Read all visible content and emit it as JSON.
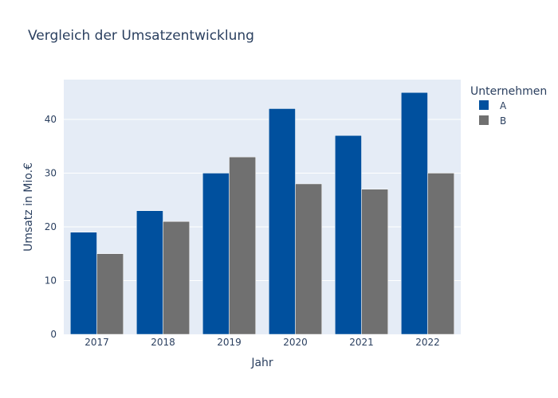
{
  "chart_data": {
    "type": "bar",
    "title": "Vergleich der Umsatzentwicklung",
    "xlabel": "Jahr",
    "ylabel": "Umsatz in Mio.€",
    "categories": [
      "2017",
      "2018",
      "2019",
      "2020",
      "2021",
      "2022"
    ],
    "series": [
      {
        "name": "A",
        "values": [
          19,
          23,
          30,
          42,
          37,
          45
        ],
        "color": "#00509e"
      },
      {
        "name": "B",
        "values": [
          15,
          21,
          33,
          28,
          27,
          30
        ],
        "color": "#707070"
      }
    ],
    "ylim": [
      0,
      47.4
    ],
    "yticks": [
      0,
      10,
      20,
      30,
      40
    ],
    "grid": true,
    "barmode": "group",
    "legend": {
      "title": "Unternehmen",
      "position": "right"
    },
    "plot_background": "#e5ecf6"
  }
}
